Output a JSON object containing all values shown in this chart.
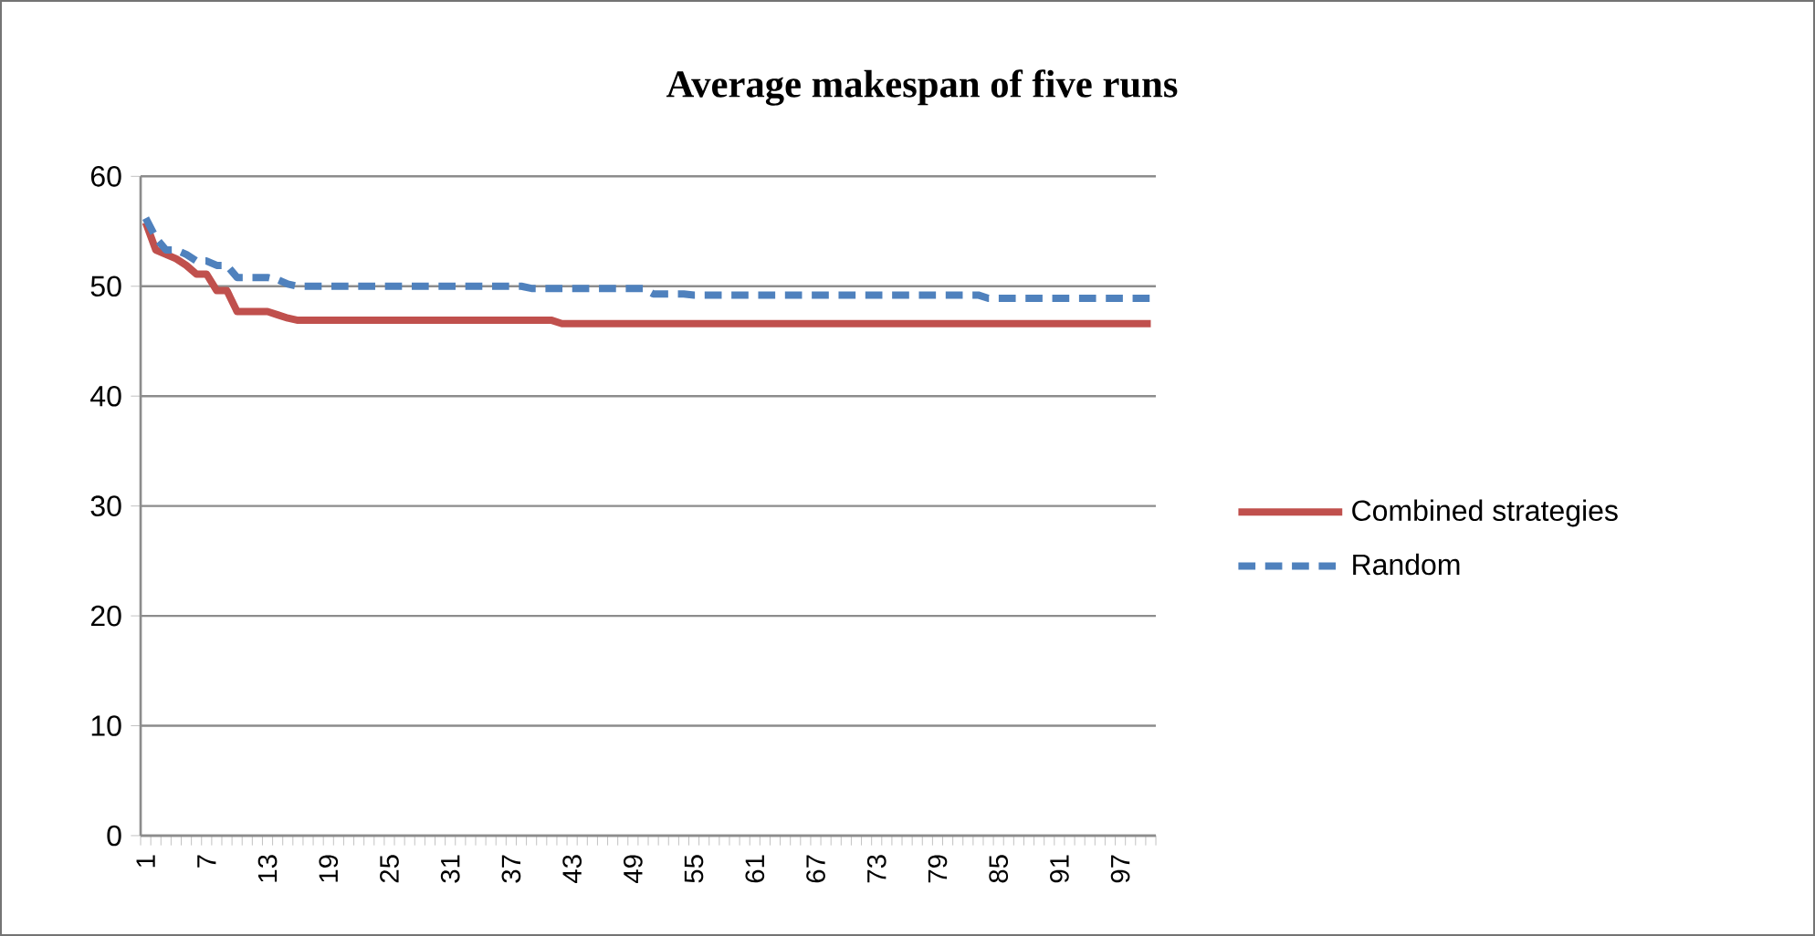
{
  "chart_data": {
    "type": "line",
    "title": "Average makespan of five runs",
    "categories": [
      "1",
      null,
      null,
      null,
      null,
      null,
      "7",
      null,
      null,
      null,
      null,
      null,
      "13",
      null,
      null,
      null,
      null,
      null,
      "19",
      null,
      null,
      null,
      null,
      null,
      "25",
      null,
      null,
      null,
      null,
      null,
      "31",
      null,
      null,
      null,
      null,
      null,
      "37",
      null,
      null,
      null,
      null,
      null,
      "43",
      null,
      null,
      null,
      null,
      null,
      "49",
      null,
      null,
      null,
      null,
      null,
      "55",
      null,
      null,
      null,
      null,
      null,
      "61",
      null,
      null,
      null,
      null,
      null,
      "67",
      null,
      null,
      null,
      null,
      null,
      "73",
      null,
      null,
      null,
      null,
      null,
      "79",
      null,
      null,
      null,
      null,
      null,
      "85",
      null,
      null,
      null,
      null,
      null,
      "91",
      null,
      null,
      null,
      null,
      null,
      "97",
      null,
      null,
      null
    ],
    "series": [
      {
        "name": "Combined strategies",
        "color": "#c0504d",
        "line_style": "solid",
        "values": [
          55.8,
          53.3,
          52.9,
          52.5,
          51.9,
          51.1,
          51.1,
          49.6,
          49.6,
          47.7,
          47.7,
          47.7,
          47.7,
          47.4,
          47.1,
          46.9,
          46.9,
          46.9,
          46.9,
          46.9,
          46.9,
          46.9,
          46.9,
          46.9,
          46.9,
          46.9,
          46.9,
          46.9,
          46.9,
          46.9,
          46.9,
          46.9,
          46.9,
          46.9,
          46.9,
          46.9,
          46.9,
          46.9,
          46.9,
          46.9,
          46.9,
          46.6,
          46.6,
          46.6,
          46.6,
          46.6,
          46.6,
          46.6,
          46.6,
          46.6,
          46.6,
          46.6,
          46.6,
          46.6,
          46.6,
          46.6,
          46.6,
          46.6,
          46.6,
          46.6,
          46.6,
          46.6,
          46.6,
          46.6,
          46.6,
          46.6,
          46.6,
          46.6,
          46.6,
          46.6,
          46.6,
          46.6,
          46.6,
          46.6,
          46.6,
          46.6,
          46.6,
          46.6,
          46.6,
          46.6,
          46.6,
          46.6,
          46.6,
          46.6,
          46.6,
          46.6,
          46.6,
          46.6,
          46.6,
          46.6,
          46.6,
          46.6,
          46.6,
          46.6,
          46.6,
          46.6,
          46.6,
          46.6,
          46.6,
          46.6
        ]
      },
      {
        "name": "Random",
        "color": "#4f81bd",
        "line_style": "dashed",
        "values": [
          56.2,
          54.4,
          53.3,
          53.3,
          52.9,
          52.3,
          52.3,
          51.9,
          51.9,
          50.8,
          50.8,
          50.8,
          50.8,
          50.6,
          50.2,
          50.0,
          50.0,
          50.0,
          50.0,
          50.0,
          50.0,
          50.0,
          50.0,
          50.0,
          50.0,
          50.0,
          50.0,
          50.0,
          50.0,
          50.0,
          50.0,
          50.0,
          50.0,
          50.0,
          50.0,
          50.0,
          50.0,
          50.0,
          49.8,
          49.8,
          49.8,
          49.8,
          49.8,
          49.8,
          49.8,
          49.8,
          49.8,
          49.8,
          49.8,
          49.8,
          49.3,
          49.3,
          49.3,
          49.3,
          49.2,
          49.2,
          49.2,
          49.2,
          49.2,
          49.2,
          49.2,
          49.2,
          49.2,
          49.2,
          49.2,
          49.2,
          49.2,
          49.2,
          49.2,
          49.2,
          49.2,
          49.2,
          49.2,
          49.2,
          49.2,
          49.2,
          49.2,
          49.2,
          49.2,
          49.2,
          49.2,
          49.2,
          49.2,
          48.9,
          48.9,
          48.9,
          48.9,
          48.9,
          48.9,
          48.9,
          48.9,
          48.9,
          48.9,
          48.9,
          48.9,
          48.9,
          48.9,
          48.9,
          48.9,
          48.9
        ]
      }
    ],
    "ylim": [
      0,
      60
    ],
    "yticks": [
      0,
      10,
      20,
      30,
      40,
      50,
      60
    ],
    "grid": "y",
    "legend": "right",
    "marker": "none"
  }
}
